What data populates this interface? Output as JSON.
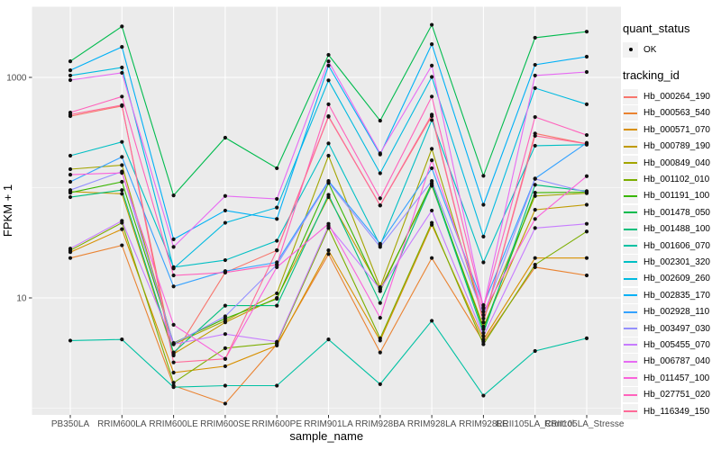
{
  "chart_data": {
    "type": "line",
    "title": "",
    "xlabel": "sample_name",
    "ylabel": "FPKM + 1",
    "yscale": "log10",
    "grid": true,
    "legend_position": "right",
    "panel_bg": "#EBEBEB",
    "grid_color": "#FFFFFF",
    "point_color": "#111111",
    "tick_label_color": "#4D4D4D",
    "yticks": [
      {
        "label": "1000",
        "value": 1000
      },
      {
        "label": "10",
        "value": 10
      }
    ],
    "minor_grid_values": [
      100,
      1
    ],
    "ylim": [
      1,
      4500
    ],
    "categories": [
      "PB350LA",
      "RRIM600LA",
      "RRIM600LE",
      "RRIM600SE",
      "RRIM600PE",
      "RRIM901LA",
      "RRIM928BA",
      "RRIM928LA",
      "RRIM928LE",
      "RRII105LA_Control",
      "RRII105LA_Stressed"
    ],
    "series": [
      {
        "name": "Hb_000264_190",
        "color": "#F8766D",
        "values": [
          445,
          550,
          3.0,
          17,
          27,
          440,
          69,
          445,
          6.0,
          310,
          250
        ]
      },
      {
        "name": "Hb_000563_540",
        "color": "#EA8331",
        "values": [
          23,
          30,
          1.6,
          1.1,
          3.8,
          25,
          3.2,
          23,
          4.0,
          19,
          16
        ]
      },
      {
        "name": "Hb_000571_070",
        "color": "#D89000",
        "values": [
          26,
          42,
          2.1,
          2.4,
          3.7,
          27,
          4.1,
          46,
          4.2,
          23,
          23
        ]
      },
      {
        "name": "Hb_000789_190",
        "color": "#C09B00",
        "values": [
          92,
          88,
          3.1,
          6.0,
          10,
          82,
          12,
          104,
          5.5,
          63,
          70
        ]
      },
      {
        "name": "Hb_000849_040",
        "color": "#A3A500",
        "values": [
          147,
          160,
          3.8,
          6.2,
          11,
          195,
          12.5,
          225,
          6.5,
          84,
          89
        ]
      },
      {
        "name": "Hb_001102_010",
        "color": "#7CAE00",
        "values": [
          27,
          48,
          1.7,
          3.5,
          3.9,
          43,
          4.3,
          48,
          3.8,
          20,
          40
        ]
      },
      {
        "name": "Hb_001191_100",
        "color": "#39B600",
        "values": [
          90,
          113,
          3.9,
          6.5,
          9.8,
          110,
          11.5,
          110,
          5.2,
          90,
          91
        ]
      },
      {
        "name": "Hb_001478_050",
        "color": "#00BB4E",
        "values": [
          1400,
          2900,
          85,
          284,
          150,
          1600,
          405,
          3000,
          128,
          2290,
          2600
        ]
      },
      {
        "name": "Hb_001488_100",
        "color": "#00BF7D",
        "values": [
          82,
          95,
          3.2,
          8.5,
          8.5,
          86,
          9.0,
          107,
          4.8,
          106,
          93
        ]
      },
      {
        "name": "Hb_001606_070",
        "color": "#00C1A3",
        "values": [
          4.1,
          4.2,
          1.55,
          1.6,
          1.6,
          4.2,
          1.65,
          6.2,
          1.3,
          3.3,
          4.3
        ]
      },
      {
        "name": "Hb_002301_320",
        "color": "#00BFC4",
        "values": [
          195,
          260,
          19,
          22,
          33,
          252,
          30,
          410,
          21,
          240,
          245
        ]
      },
      {
        "name": "Hb_002609_260",
        "color": "#00BAE0",
        "values": [
          1040,
          1230,
          18.5,
          48,
          66,
          940,
          135,
          1010,
          36,
          800,
          570
        ]
      },
      {
        "name": "Hb_002835_170",
        "color": "#00B0F6",
        "values": [
          1160,
          1890,
          34,
          62,
          52,
          1280,
          200,
          2000,
          70,
          1300,
          1540
        ]
      },
      {
        "name": "Hb_002928_110",
        "color": "#35A2FF",
        "values": [
          113,
          190,
          12.7,
          17.5,
          21,
          115,
          31,
          150,
          8.6,
          121,
          255
        ]
      },
      {
        "name": "Hb_003497_030",
        "color": "#9590FF",
        "values": [
          95,
          140,
          3.85,
          6.8,
          20,
          112,
          29,
          115,
          7.0,
          120,
          91
        ]
      },
      {
        "name": "Hb_005455_070",
        "color": "#C77CFF",
        "values": [
          28,
          50,
          3.8,
          4.7,
          4.0,
          45,
          12,
          62,
          4.5,
          43,
          47
        ]
      },
      {
        "name": "Hb_006787_040",
        "color": "#E76BF3",
        "values": [
          945,
          1100,
          29,
          84,
          79,
          1400,
          205,
          1280,
          8.2,
          1040,
          1120
        ]
      },
      {
        "name": "Hb_011457_100",
        "color": "#FA62DB",
        "values": [
          131,
          136,
          5.7,
          2.8,
          19,
          47,
          6.6,
          177,
          7.5,
          52,
          127
        ]
      },
      {
        "name": "Hb_027751_020",
        "color": "#FF62BC",
        "values": [
          480,
          670,
          16,
          17,
          20,
          570,
          80,
          670,
          8.0,
          437,
          300
        ]
      },
      {
        "name": "Hb_116349_150",
        "color": "#FF6A98",
        "values": [
          460,
          560,
          2.6,
          2.8,
          27,
          445,
          69,
          460,
          6.0,
          295,
          250
        ]
      }
    ]
  },
  "legend": {
    "quant_status_title": "quant_status",
    "quant_status_items": [
      {
        "label": "OK",
        "marker": "point"
      }
    ],
    "tracking_title": "tracking_id"
  }
}
